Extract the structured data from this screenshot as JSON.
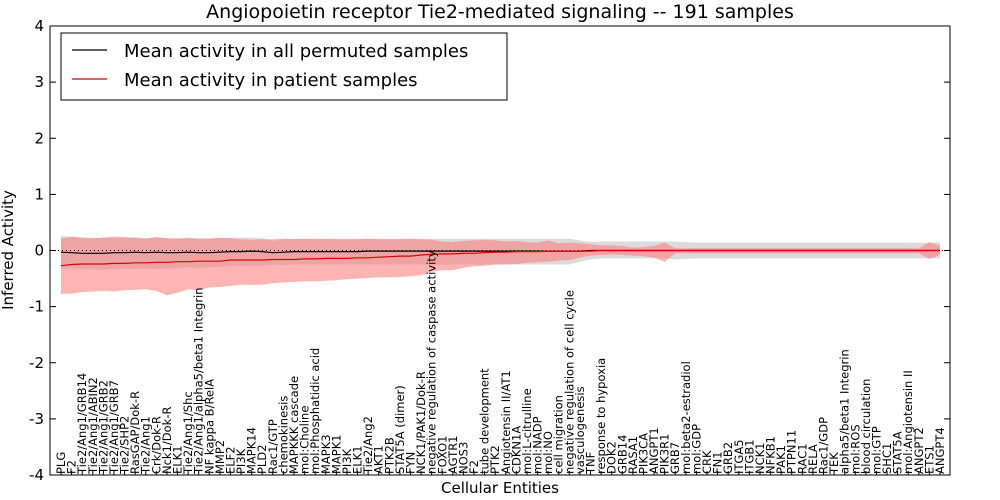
{
  "chart_data": {
    "type": "line",
    "title": "Angiopoietin receptor Tie2-mediated signaling -- 191 samples",
    "xlabel": "Cellular Entities",
    "ylabel": "Inferred Activity",
    "ylim": [
      -4,
      4
    ],
    "yticks": [
      -4,
      -3,
      -2,
      -1,
      0,
      1,
      2,
      3,
      4
    ],
    "grid": false,
    "legend_position": "top-left",
    "entities": [
      "PLG",
      "F2",
      "Tie2/Ang1/GRB14",
      "Tie2/Ang1/ABIN2",
      "Tie2/Ang1/GRB2",
      "Tie2/Ang1/GRB7",
      "Tie2/SHP2",
      "RasGAP/Dok-R",
      "Tie2/Ang1",
      "Crk/Dok-R",
      "Nck1/Dok-R",
      "ELK1",
      "Tie2/Ang1/Shc",
      "Tie2/Ang1/alpha5/beta1 Integrin",
      "NF kappa B/RelA",
      "MMP2",
      "ELF2",
      "PI3K",
      "MAPK14",
      "PLD2",
      "Rac1/GTP",
      "chemokinesis",
      "MAPKKK cascade",
      "mol:Choline",
      "mol:Phosphatidic acid",
      "MAPK3",
      "MAPK1",
      "PI3K",
      "ELK1",
      "Tie2/Ang2",
      "AKT1",
      "PTK2B",
      "STAT5A (dimer)",
      "FYN",
      "NCK1/PAK1/Dok-R",
      "negative regulation of caspase activity",
      "FOXO1",
      "AGTR1",
      "NOS3",
      "F2",
      "tube development",
      "PTK2",
      "Angiotensin II/AT1",
      "CDKN1A",
      "mol:L-citrulline",
      "mol:NADP",
      "mol:NO",
      "cell migration",
      "negative regulation of cell cycle",
      "vasculogenesis",
      "TNF",
      "response to hypoxia",
      "DOK2",
      "GRB14",
      "RASA1",
      "PIK3CA",
      "ANGPT1",
      "PIK3R1",
      "GRB7",
      "mol:beta2-estradiol",
      "mol:GDP",
      "CRK",
      "FN1",
      "GRB2",
      "ITGA5",
      "ITGB1",
      "NCK1",
      "NFKB1",
      "PAK1",
      "PTPN11",
      "RAC1",
      "RELA",
      "Rac1/GDP",
      "TEK",
      "alpha5/beta1 Integrin",
      "mol:ROS",
      "blood circulation",
      "mol:GTP",
      "SHC1",
      "STAT5A",
      "mol:Angiotensin II",
      "ANGPT2",
      "ETS1",
      "ANGPT4"
    ],
    "x": [
      1,
      2,
      3,
      4,
      5,
      6,
      7,
      8,
      9,
      10,
      11,
      12,
      13,
      14,
      15,
      16,
      17,
      18,
      19,
      20,
      21,
      22,
      23,
      24,
      25,
      26,
      27,
      28,
      29,
      30,
      31,
      32,
      33,
      34,
      35,
      36,
      37,
      38,
      39,
      40,
      41,
      42,
      43,
      44,
      45,
      46,
      47,
      48,
      49,
      50,
      51,
      52,
      53,
      54,
      55,
      56,
      57,
      58,
      59,
      60,
      61,
      62,
      63,
      64,
      65,
      66,
      67,
      68,
      69,
      70,
      71,
      72,
      73,
      74,
      75,
      76,
      77,
      78,
      79,
      80,
      81,
      82,
      83,
      84
    ],
    "series": [
      {
        "name": "Mean activity in all permuted samples",
        "color": "#000000",
        "fill_color": "#999999",
        "values": [
          -0.03,
          -0.04,
          -0.05,
          -0.05,
          -0.05,
          -0.04,
          -0.04,
          -0.03,
          -0.04,
          -0.03,
          -0.04,
          -0.04,
          -0.03,
          -0.04,
          -0.04,
          -0.03,
          -0.02,
          -0.02,
          -0.01,
          -0.02,
          -0.04,
          -0.03,
          -0.02,
          -0.02,
          -0.02,
          -0.02,
          -0.02,
          -0.02,
          -0.02,
          -0.01,
          -0.01,
          -0.01,
          -0.01,
          -0.01,
          -0.01,
          -0.01,
          -0.01,
          -0.01,
          -0.01,
          -0.01,
          -0.01,
          -0.01,
          -0.01,
          -0.01,
          -0.01,
          -0.01,
          -0.01,
          -0.01,
          -0.01,
          -0.01,
          0.0,
          0.0,
          0.0,
          0.0,
          0.0,
          0.0,
          0.0,
          0.0,
          0.0,
          0.0,
          0.0,
          0.0,
          0.0,
          0.0,
          0.0,
          0.0,
          0.0,
          0.0,
          0.0,
          0.0,
          0.0,
          0.0,
          0.0,
          0.0,
          0.0,
          0.0,
          0.0,
          0.0,
          0.0,
          0.0,
          0.0,
          0.0,
          0.0,
          0.0
        ],
        "upper": [
          0.26,
          0.24,
          0.23,
          0.22,
          0.23,
          0.22,
          0.22,
          0.24,
          0.22,
          0.23,
          0.22,
          0.22,
          0.23,
          0.22,
          0.22,
          0.22,
          0.23,
          0.23,
          0.23,
          0.22,
          0.17,
          0.2,
          0.21,
          0.21,
          0.21,
          0.21,
          0.21,
          0.21,
          0.21,
          0.21,
          0.21,
          0.21,
          0.21,
          0.21,
          0.21,
          0.21,
          0.21,
          0.21,
          0.21,
          0.21,
          0.21,
          0.21,
          0.21,
          0.21,
          0.21,
          0.21,
          0.21,
          0.21,
          0.21,
          0.18,
          0.15,
          0.16,
          0.16,
          0.16,
          0.16,
          0.16,
          0.16,
          0.16,
          0.16,
          0.15,
          0.14,
          0.14,
          0.14,
          0.14,
          0.14,
          0.14,
          0.14,
          0.14,
          0.14,
          0.14,
          0.14,
          0.14,
          0.14,
          0.14,
          0.14,
          0.14,
          0.14,
          0.14,
          0.14,
          0.14,
          0.14,
          0.14,
          0.14,
          0.14
        ],
        "lower": [
          -0.32,
          -0.32,
          -0.33,
          -0.33,
          -0.34,
          -0.33,
          -0.32,
          -0.33,
          -0.32,
          -0.33,
          -0.32,
          -0.32,
          -0.3,
          -0.31,
          -0.3,
          -0.29,
          -0.28,
          -0.28,
          -0.27,
          -0.27,
          -0.25,
          -0.26,
          -0.25,
          -0.25,
          -0.25,
          -0.25,
          -0.25,
          -0.25,
          -0.25,
          -0.25,
          -0.25,
          -0.25,
          -0.25,
          -0.25,
          -0.25,
          -0.25,
          -0.25,
          -0.25,
          -0.25,
          -0.25,
          -0.25,
          -0.25,
          -0.25,
          -0.25,
          -0.25,
          -0.25,
          -0.25,
          -0.25,
          -0.25,
          -0.2,
          -0.16,
          -0.14,
          -0.14,
          -0.14,
          -0.14,
          -0.14,
          -0.14,
          -0.14,
          -0.16,
          -0.15,
          -0.14,
          -0.14,
          -0.14,
          -0.14,
          -0.14,
          -0.14,
          -0.14,
          -0.14,
          -0.14,
          -0.14,
          -0.14,
          -0.14,
          -0.14,
          -0.14,
          -0.14,
          -0.14,
          -0.14,
          -0.14,
          -0.14,
          -0.14,
          -0.14,
          -0.14,
          -0.14,
          -0.14
        ]
      },
      {
        "name": "Mean activity in patient samples",
        "color": "#dd0000",
        "fill_color": "#ff7777",
        "values": [
          -0.27,
          -0.25,
          -0.24,
          -0.24,
          -0.24,
          -0.23,
          -0.23,
          -0.22,
          -0.22,
          -0.21,
          -0.21,
          -0.2,
          -0.2,
          -0.19,
          -0.19,
          -0.19,
          -0.17,
          -0.17,
          -0.17,
          -0.17,
          -0.16,
          -0.16,
          -0.16,
          -0.15,
          -0.15,
          -0.14,
          -0.14,
          -0.14,
          -0.13,
          -0.13,
          -0.12,
          -0.11,
          -0.1,
          -0.1,
          -0.08,
          -0.07,
          -0.06,
          -0.06,
          -0.05,
          -0.05,
          -0.04,
          -0.03,
          -0.03,
          -0.02,
          -0.02,
          -0.02,
          -0.01,
          -0.01,
          -0.01,
          -0.01,
          -0.01,
          0.0,
          0.0,
          0.0,
          0.0,
          0.0,
          0.0,
          0.0,
          0.0,
          0.0,
          0.0,
          0.0,
          0.0,
          0.0,
          0.0,
          0.0,
          0.0,
          0.0,
          0.0,
          0.0,
          0.0,
          0.0,
          0.0,
          0.0,
          0.0,
          0.0,
          0.0,
          0.0,
          0.0,
          0.0,
          0.0,
          0.0,
          0.0,
          0.0
        ],
        "upper": [
          0.21,
          0.25,
          0.23,
          0.22,
          0.23,
          0.25,
          0.24,
          0.22,
          0.21,
          0.24,
          0.22,
          0.21,
          0.22,
          0.21,
          0.21,
          0.23,
          0.22,
          0.2,
          0.19,
          0.2,
          0.2,
          0.21,
          0.2,
          0.21,
          0.2,
          0.21,
          0.2,
          0.2,
          0.2,
          0.21,
          0.2,
          0.2,
          0.2,
          0.21,
          0.2,
          0.19,
          0.16,
          0.15,
          0.17,
          0.18,
          0.19,
          0.18,
          0.16,
          0.17,
          0.15,
          0.14,
          0.18,
          0.13,
          0.14,
          0.13,
          0.11,
          0.09,
          0.09,
          0.08,
          0.05,
          0.06,
          0.08,
          0.14,
          0.04,
          0.04,
          0.04,
          0.04,
          0.04,
          0.04,
          0.04,
          0.04,
          0.04,
          0.04,
          0.04,
          0.04,
          0.04,
          0.04,
          0.04,
          0.04,
          0.04,
          0.04,
          0.04,
          0.04,
          0.04,
          0.04,
          0.04,
          0.04,
          0.15,
          0.08
        ],
        "lower": [
          -0.77,
          -0.77,
          -0.74,
          -0.73,
          -0.72,
          -0.73,
          -0.71,
          -0.7,
          -0.69,
          -0.72,
          -0.8,
          -0.75,
          -0.69,
          -0.71,
          -0.66,
          -0.65,
          -0.63,
          -0.61,
          -0.61,
          -0.61,
          -0.58,
          -0.57,
          -0.56,
          -0.55,
          -0.55,
          -0.54,
          -0.53,
          -0.51,
          -0.5,
          -0.49,
          -0.48,
          -0.48,
          -0.47,
          -0.46,
          -0.44,
          -0.38,
          -0.35,
          -0.35,
          -0.31,
          -0.28,
          -0.27,
          -0.25,
          -0.25,
          -0.24,
          -0.22,
          -0.21,
          -0.2,
          -0.18,
          -0.17,
          -0.13,
          -0.09,
          -0.08,
          -0.07,
          -0.08,
          -0.09,
          -0.1,
          -0.13,
          -0.2,
          -0.05,
          -0.05,
          -0.05,
          -0.05,
          -0.05,
          -0.05,
          -0.05,
          -0.05,
          -0.05,
          -0.05,
          -0.05,
          -0.05,
          -0.05,
          -0.05,
          -0.05,
          -0.05,
          -0.05,
          -0.05,
          -0.05,
          -0.05,
          -0.05,
          -0.05,
          -0.05,
          -0.05,
          -0.15,
          -0.08
        ]
      }
    ]
  }
}
